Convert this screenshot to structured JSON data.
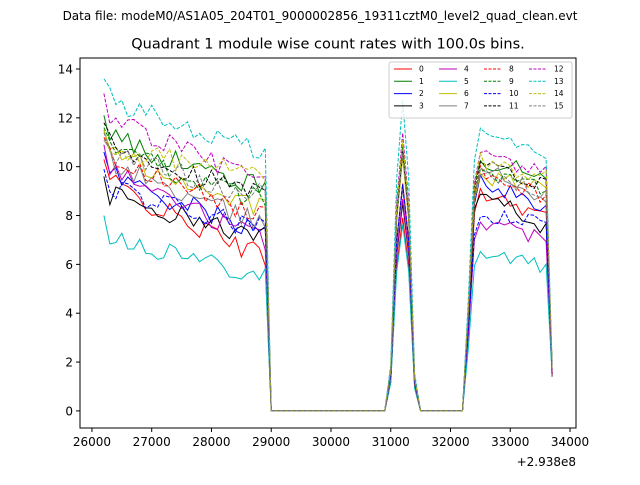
{
  "chart_data": {
    "type": "line",
    "suptitle": "Data file: modeM0/AS1A05_204T01_9000002856_19311cztM0_level2_quad_clean.evt",
    "title": "Quadrant 1 module wise count rates with 100.0s bins.",
    "xlabel": "",
    "ylabel": "",
    "x_offset_label": "+2.938e8",
    "xlim": [
      25800,
      34100
    ],
    "ylim": [
      -0.7,
      14.45
    ],
    "xticks": [
      26000,
      27000,
      28000,
      29000,
      30000,
      31000,
      32000,
      33000,
      34000
    ],
    "yticks": [
      0,
      2,
      4,
      6,
      8,
      10,
      12,
      14
    ],
    "grid": false,
    "legend_position": "top-right",
    "segments": [
      {
        "x_start": 26200,
        "step": 100,
        "count": 28,
        "drop_to": 29000
      },
      {
        "x_start": 31000,
        "step": 100,
        "count": 5,
        "drop_to": 31500
      },
      {
        "x_start": 32300,
        "step": 100,
        "count": 15,
        "drop_to": null
      }
    ],
    "zero_gaps": [
      [
        29000,
        31000
      ],
      [
        31500,
        32300
      ]
    ],
    "series": [
      {
        "name": "0",
        "color": "#ff0000",
        "dash": "solid",
        "base1": 9.7,
        "base2": 6.3,
        "peak3": 9.0,
        "base3": 7.9
      },
      {
        "name": "1",
        "color": "#008000",
        "dash": "solid",
        "base1": 11.5,
        "base2": 9.1,
        "peak3": 10.3,
        "base3": 9.5
      },
      {
        "name": "2",
        "color": "#0000ff",
        "dash": "solid",
        "base1": 10.0,
        "base2": 7.3,
        "peak3": 9.4,
        "base3": 8.3
      },
      {
        "name": "3",
        "color": "#000000",
        "dash": "solid",
        "base1": 9.0,
        "base2": 7.1,
        "peak3": 9.2,
        "base3": 7.3
      },
      {
        "name": "4",
        "color": "#bf00bf",
        "dash": "solid",
        "base1": 10.3,
        "base2": 7.0,
        "peak3": 7.8,
        "base3": 7.0
      },
      {
        "name": "5",
        "color": "#00bfbf",
        "dash": "solid",
        "base1": 7.4,
        "base2": 5.6,
        "peak3": 6.6,
        "base3": 5.8
      },
      {
        "name": "6",
        "color": "#bfbf00",
        "dash": "solid",
        "base1": 10.9,
        "base2": 8.3,
        "peak3": 9.6,
        "base3": 9.0
      },
      {
        "name": "7",
        "color": "#808080",
        "dash": "solid",
        "base1": 10.5,
        "base2": 7.6,
        "peak3": 10.0,
        "base3": 8.6
      },
      {
        "name": "8",
        "color": "#ff0000",
        "dash": "dashed",
        "base1": 10.6,
        "base2": 8.0,
        "peak3": 9.7,
        "base3": 8.7
      },
      {
        "name": "9",
        "color": "#008000",
        "dash": "dashed",
        "base1": 11.0,
        "base2": 8.6,
        "peak3": 9.9,
        "base3": 9.0
      },
      {
        "name": "10",
        "color": "#0000ff",
        "dash": "dashed",
        "base1": 9.3,
        "base2": 7.4,
        "peak3": 8.0,
        "base3": 7.6
      },
      {
        "name": "11",
        "color": "#000000",
        "dash": "dashed",
        "base1": 11.2,
        "base2": 8.8,
        "peak3": 10.1,
        "base3": 9.1
      },
      {
        "name": "12",
        "color": "#bf00bf",
        "dash": "dashed",
        "base1": 12.4,
        "base2": 9.4,
        "peak3": 10.4,
        "base3": 9.6
      },
      {
        "name": "13",
        "color": "#00bfbf",
        "dash": "dashed",
        "base1": 13.0,
        "base2": 10.6,
        "peak3": 11.4,
        "base3": 10.4
      },
      {
        "name": "14",
        "color": "#bfbf00",
        "dash": "dashed",
        "base1": 10.9,
        "base2": 9.7,
        "peak3": 10.2,
        "base3": 9.5
      },
      {
        "name": "15",
        "color": "#808080",
        "dash": "dashed",
        "base1": 10.8,
        "base2": 8.8,
        "peak3": 9.7,
        "base3": 8.9
      }
    ],
    "legend_columns": 4
  }
}
